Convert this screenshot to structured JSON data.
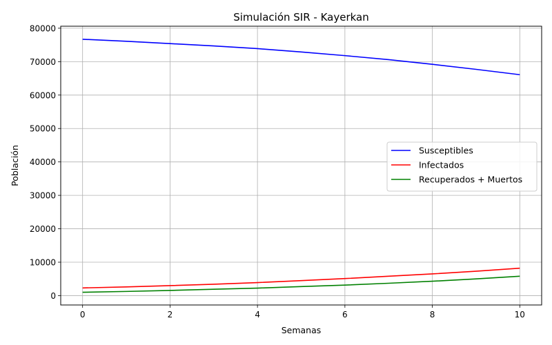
{
  "chart_data": {
    "type": "line",
    "title": "Simulación SIR - Kayerkan",
    "xlabel": "Semanas",
    "ylabel": "Población",
    "xlim": [
      -0.5,
      10.5
    ],
    "ylim": [
      -2800,
      80600
    ],
    "xticks": [
      0,
      2,
      4,
      6,
      8,
      10
    ],
    "yticks": [
      0,
      10000,
      20000,
      30000,
      40000,
      50000,
      60000,
      70000,
      80000
    ],
    "grid": true,
    "legend_position": "center-right",
    "x": [
      0,
      1,
      2,
      3,
      4,
      5,
      6,
      7,
      8,
      9,
      10
    ],
    "series": [
      {
        "name": "Susceptibles",
        "color": "#0000ff",
        "values": [
          76700,
          76100,
          75400,
          74700,
          73900,
          72900,
          71800,
          70600,
          69200,
          67700,
          66100
        ]
      },
      {
        "name": "Infectados",
        "color": "#ff0000",
        "values": [
          2300,
          2600,
          3000,
          3400,
          3900,
          4500,
          5100,
          5800,
          6500,
          7300,
          8200
        ]
      },
      {
        "name": "Recuperados + Muertos",
        "color": "#008000",
        "values": [
          1000,
          1250,
          1550,
          1900,
          2250,
          2700,
          3150,
          3700,
          4300,
          5000,
          5800
        ]
      }
    ]
  }
}
